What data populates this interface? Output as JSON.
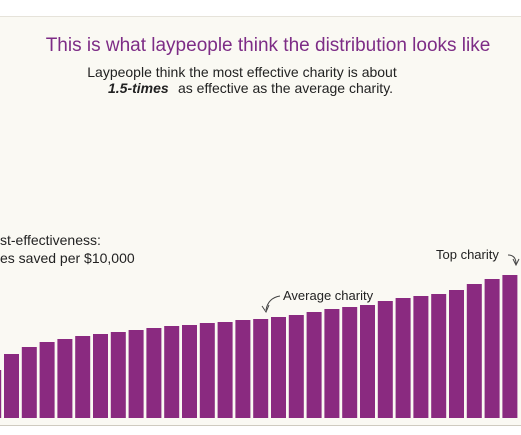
{
  "chart_data": {
    "type": "bar",
    "title": "This is what laypeople think the distribution looks like",
    "subtitle": [
      "Laypeople think the most effective charity is about",
      "1.5-times",
      "as effective as the average charity."
    ],
    "axis_label": [
      "st-effectiveness:",
      "es saved per $10,000"
    ],
    "annotations": [
      "Average charity",
      "Top charity"
    ],
    "values": [
      48,
      64,
      71,
      76,
      79,
      82,
      84,
      86,
      88,
      90,
      92,
      93,
      95,
      96,
      98,
      99,
      101,
      103,
      106,
      109,
      111,
      113,
      117,
      120,
      122,
      124,
      128,
      134,
      139,
      143
    ],
    "color": "#8a2a80",
    "ylim": [
      0,
      150
    ]
  }
}
